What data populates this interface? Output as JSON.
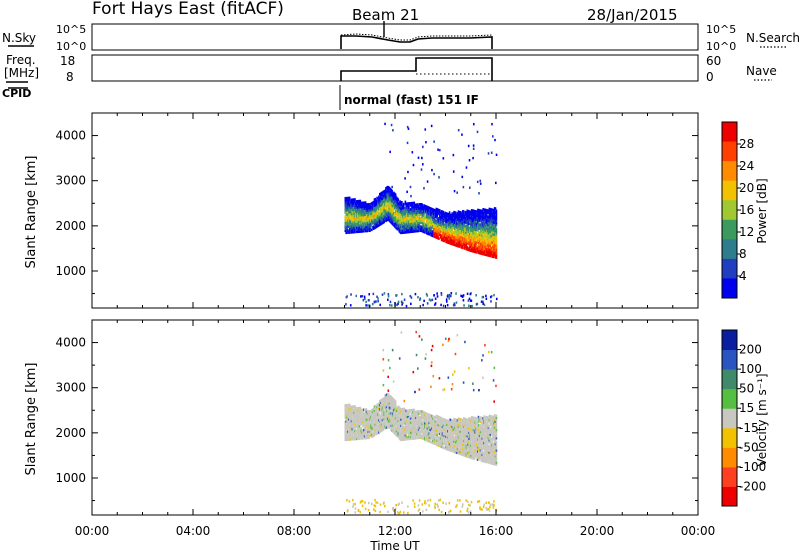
{
  "header": {
    "station": "Fort Hays East (fitACF)",
    "beam": "Beam 21",
    "date": "28/Jan/2015"
  },
  "noise_panel": {
    "left_label": "N.Sky",
    "right_label": "N.Search",
    "ticks": [
      "10^5",
      "10^0"
    ]
  },
  "freq_panel": {
    "left_label_1": "Freq.",
    "left_label_2": "[MHz]",
    "left_ticks": [
      "18",
      "8"
    ],
    "right_label": "Nave",
    "right_ticks": [
      "60",
      "0"
    ]
  },
  "cpid": {
    "label": "CPID",
    "text": "normal (fast) 151 IF"
  },
  "power_panel": {
    "ylabel": "Slant Range [km]",
    "yticks": [
      "4000",
      "3000",
      "2000",
      "1000"
    ],
    "colorbar_label": "Power [dB]",
    "colorbar_ticks": [
      "28",
      "24",
      "20",
      "16",
      "12",
      "8",
      "4"
    ],
    "colors": [
      "#0000ee",
      "#1f3fbf",
      "#2e7d8c",
      "#3d9a5e",
      "#a0c830",
      "#f2c200",
      "#ff8c00",
      "#ff4000",
      "#ee0000"
    ]
  },
  "velocity_panel": {
    "ylabel": "Slant Range [km]",
    "yticks": [
      "4000",
      "3000",
      "2000",
      "1000"
    ],
    "colorbar_label": "Velocity [m s⁻¹]",
    "colorbar_ticks": [
      "200",
      "100",
      "50",
      "15",
      "-15",
      "-50",
      "-100",
      "-200"
    ],
    "colors": [
      "#0a1fa0",
      "#2a55c0",
      "#3e8a6a",
      "#55c040",
      "#c8c8c0",
      "#f2c200",
      "#ff8c00",
      "#ff4020",
      "#ee0000"
    ]
  },
  "xaxis": {
    "label": "Time UT",
    "ticks": [
      "00:00",
      "04:00",
      "08:00",
      "12:00",
      "16:00",
      "20:00",
      "00:00"
    ]
  },
  "chart_data": {
    "type": "heatmap",
    "title": "Fort Hays East (fitACF)",
    "xlabel": "Time UT",
    "ylabel": "Slant Range [km]",
    "xlim_hours": [
      0,
      24
    ],
    "ylim_km": [
      180,
      4500
    ],
    "data_interval_hours": [
      10,
      16
    ],
    "freq_mhz_segments": [
      {
        "start": 10,
        "end": 13,
        "value": 10.5
      },
      {
        "start": 13,
        "end": 16,
        "value": 16.5
      }
    ],
    "nave_approx": 1,
    "power_echo_band": [
      {
        "time": 10.0,
        "lower": 1900,
        "upper": 2500
      },
      {
        "time": 11.0,
        "lower": 1950,
        "upper": 2350
      },
      {
        "time": 11.7,
        "lower": 2200,
        "upper": 2750
      },
      {
        "time": 12.2,
        "lower": 1900,
        "upper": 2400
      },
      {
        "time": 13.0,
        "lower": 1950,
        "upper": 2350
      },
      {
        "time": 14.0,
        "lower": 1700,
        "upper": 2150
      },
      {
        "time": 15.0,
        "lower": 1500,
        "upper": 2200
      },
      {
        "time": 16.0,
        "lower": 1350,
        "upper": 2250
      }
    ],
    "grid": false
  }
}
